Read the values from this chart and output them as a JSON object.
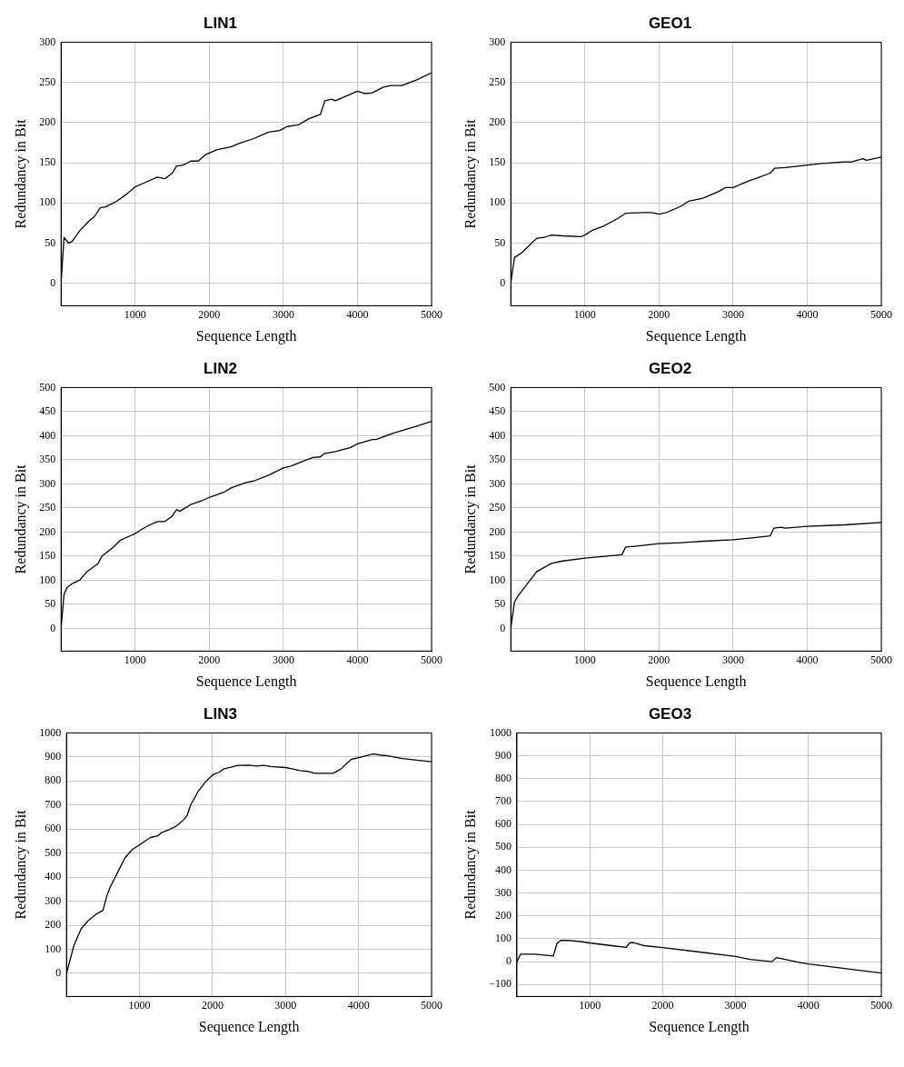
{
  "chart_data": [
    {
      "type": "line",
      "title": "LIN1",
      "xlabel": "Sequence Length",
      "ylabel": "Redundancy in Bit",
      "grid": true,
      "marker": "none",
      "xlim": [
        0,
        5000
      ],
      "xticks": [
        1000,
        2000,
        3000,
        4000,
        5000
      ],
      "ylim": [
        -28,
        300
      ],
      "yticks": [
        0,
        50,
        100,
        150,
        200,
        250,
        300
      ],
      "x": [
        0,
        40,
        100,
        150,
        250,
        350,
        450,
        530,
        600,
        750,
        900,
        1000,
        1100,
        1300,
        1400,
        1500,
        1560,
        1650,
        1750,
        1850,
        1950,
        2100,
        2300,
        2400,
        2600,
        2800,
        2950,
        3050,
        3200,
        3350,
        3500,
        3560,
        3650,
        3700,
        3850,
        4000,
        4100,
        4200,
        4350,
        4450,
        4600,
        4800,
        5000
      ],
      "series": [
        {
          "color": "#000000",
          "values": [
            0,
            57,
            50,
            52,
            65,
            75,
            83,
            94,
            95,
            102,
            112,
            120,
            124,
            132,
            130,
            137,
            146,
            147,
            152,
            152,
            160,
            166,
            170,
            174,
            180,
            188,
            190,
            195,
            197,
            205,
            210,
            227,
            229,
            227,
            233,
            239,
            236,
            237,
            244,
            246,
            246,
            253,
            262
          ]
        }
      ]
    },
    {
      "type": "line",
      "title": "GEO1",
      "xlabel": "Sequence Length",
      "ylabel": "Redundancy in Bit",
      "grid": true,
      "marker": "none",
      "xlim": [
        0,
        5000
      ],
      "xticks": [
        1000,
        2000,
        3000,
        4000,
        5000
      ],
      "ylim": [
        -28,
        300
      ],
      "yticks": [
        0,
        50,
        100,
        150,
        200,
        250,
        300
      ],
      "x": [
        0,
        50,
        150,
        350,
        450,
        550,
        700,
        950,
        1000,
        1100,
        1250,
        1350,
        1450,
        1550,
        1800,
        1900,
        2000,
        2100,
        2300,
        2400,
        2600,
        2800,
        2900,
        3000,
        3200,
        3300,
        3500,
        3560,
        3700,
        3900,
        4000,
        4200,
        4500,
        4600,
        4750,
        4800,
        5000
      ],
      "series": [
        {
          "color": "#000000",
          "values": [
            0,
            32,
            38,
            56,
            57,
            60,
            59,
            58,
            60,
            66,
            71,
            76,
            81,
            87,
            88,
            88,
            86,
            88,
            96,
            102,
            106,
            114,
            119,
            119,
            127,
            130,
            137,
            143,
            144,
            146,
            147,
            149,
            151,
            151,
            155,
            153,
            157
          ]
        }
      ]
    },
    {
      "type": "line",
      "title": "LIN2",
      "xlabel": "Sequence Length",
      "ylabel": "Redundancy in Bit",
      "grid": true,
      "marker": "none",
      "xlim": [
        0,
        5000
      ],
      "xticks": [
        1000,
        2000,
        3000,
        4000,
        5000
      ],
      "ylim": [
        -47,
        500
      ],
      "yticks": [
        0,
        50,
        100,
        150,
        200,
        250,
        300,
        350,
        400,
        450,
        500
      ],
      "x": [
        0,
        40,
        80,
        150,
        250,
        350,
        500,
        550,
        700,
        800,
        900,
        1000,
        1100,
        1200,
        1300,
        1400,
        1500,
        1560,
        1600,
        1750,
        1900,
        2000,
        2200,
        2300,
        2500,
        2600,
        2800,
        3000,
        3100,
        3300,
        3400,
        3500,
        3550,
        3700,
        3900,
        4000,
        4200,
        4250,
        4500,
        4800,
        5000
      ],
      "series": [
        {
          "color": "#000000",
          "values": [
            0,
            70,
            85,
            93,
            100,
            118,
            135,
            150,
            168,
            183,
            190,
            197,
            207,
            215,
            222,
            222,
            233,
            247,
            243,
            257,
            265,
            272,
            283,
            292,
            303,
            306,
            318,
            333,
            337,
            349,
            355,
            356,
            363,
            367,
            375,
            383,
            392,
            392,
            406,
            420,
            430
          ]
        }
      ]
    },
    {
      "type": "line",
      "title": "GEO2",
      "xlabel": "Sequence Length",
      "ylabel": "Redundancy in Bit",
      "grid": true,
      "marker": "none",
      "xlim": [
        0,
        5000
      ],
      "xticks": [
        1000,
        2000,
        3000,
        4000,
        5000
      ],
      "ylim": [
        -47,
        500
      ],
      "yticks": [
        0,
        50,
        100,
        150,
        200,
        250,
        300,
        350,
        400,
        450,
        500
      ],
      "x": [
        0,
        50,
        100,
        200,
        350,
        550,
        700,
        1000,
        1300,
        1500,
        1550,
        1700,
        2000,
        2300,
        2600,
        3000,
        3250,
        3500,
        3550,
        3650,
        3700,
        4000,
        4500,
        5000
      ],
      "series": [
        {
          "color": "#000000",
          "values": [
            0,
            55,
            68,
            88,
            118,
            135,
            140,
            146,
            150,
            153,
            169,
            171,
            176,
            178,
            181,
            184,
            188,
            192,
            208,
            210,
            208,
            212,
            215,
            220
          ]
        }
      ]
    },
    {
      "type": "line",
      "title": "LIN3",
      "xlabel": "Sequence Length",
      "ylabel": "Redundancy in Bit",
      "grid": true,
      "marker": "none",
      "xlim": [
        0,
        5000
      ],
      "xticks": [
        1000,
        2000,
        3000,
        4000,
        5000
      ],
      "ylim": [
        -96,
        1000
      ],
      "yticks": [
        0,
        100,
        200,
        300,
        400,
        500,
        600,
        700,
        800,
        900,
        1000
      ],
      "x": [
        0,
        100,
        200,
        300,
        400,
        500,
        550,
        600,
        700,
        800,
        900,
        1000,
        1150,
        1250,
        1300,
        1400,
        1500,
        1600,
        1650,
        1700,
        1800,
        1900,
        2000,
        2100,
        2150,
        2250,
        2350,
        2500,
        2600,
        2700,
        2800,
        3000,
        3100,
        3200,
        3300,
        3400,
        3650,
        3750,
        3900,
        4000,
        4100,
        4200,
        4300,
        4400,
        4600,
        5000
      ],
      "series": [
        {
          "color": "#000000",
          "values": [
            0,
            115,
            185,
            220,
            245,
            262,
            320,
            360,
            420,
            480,
            515,
            535,
            565,
            572,
            585,
            597,
            612,
            637,
            655,
            700,
            755,
            795,
            825,
            838,
            850,
            857,
            865,
            866,
            862,
            865,
            860,
            856,
            850,
            843,
            840,
            832,
            832,
            848,
            890,
            897,
            905,
            912,
            908,
            905,
            893,
            880
          ]
        }
      ]
    },
    {
      "type": "line",
      "title": "GEO3",
      "xlabel": "Sequence Length",
      "ylabel": "Redundancy in Bit",
      "grid": true,
      "marker": "none",
      "xlim": [
        0,
        5000
      ],
      "xticks": [
        1000,
        2000,
        3000,
        4000,
        5000
      ],
      "ylim": [
        -152,
        1000
      ],
      "yticks": [
        {
          "value": -100,
          "label": "−100"
        },
        0,
        100,
        200,
        300,
        400,
        500,
        600,
        700,
        800,
        900,
        1000
      ],
      "x": [
        0,
        50,
        250,
        500,
        550,
        600,
        700,
        900,
        1000,
        1300,
        1500,
        1550,
        1600,
        1750,
        2000,
        3000,
        3200,
        3500,
        3560,
        3650,
        3900,
        4000,
        5000
      ],
      "series": [
        {
          "color": "#000000",
          "values": [
            0,
            33,
            33,
            25,
            80,
            93,
            93,
            87,
            82,
            70,
            63,
            83,
            83,
            70,
            62,
            23,
            10,
            0,
            18,
            12,
            -5,
            -10,
            -50
          ]
        }
      ]
    }
  ]
}
